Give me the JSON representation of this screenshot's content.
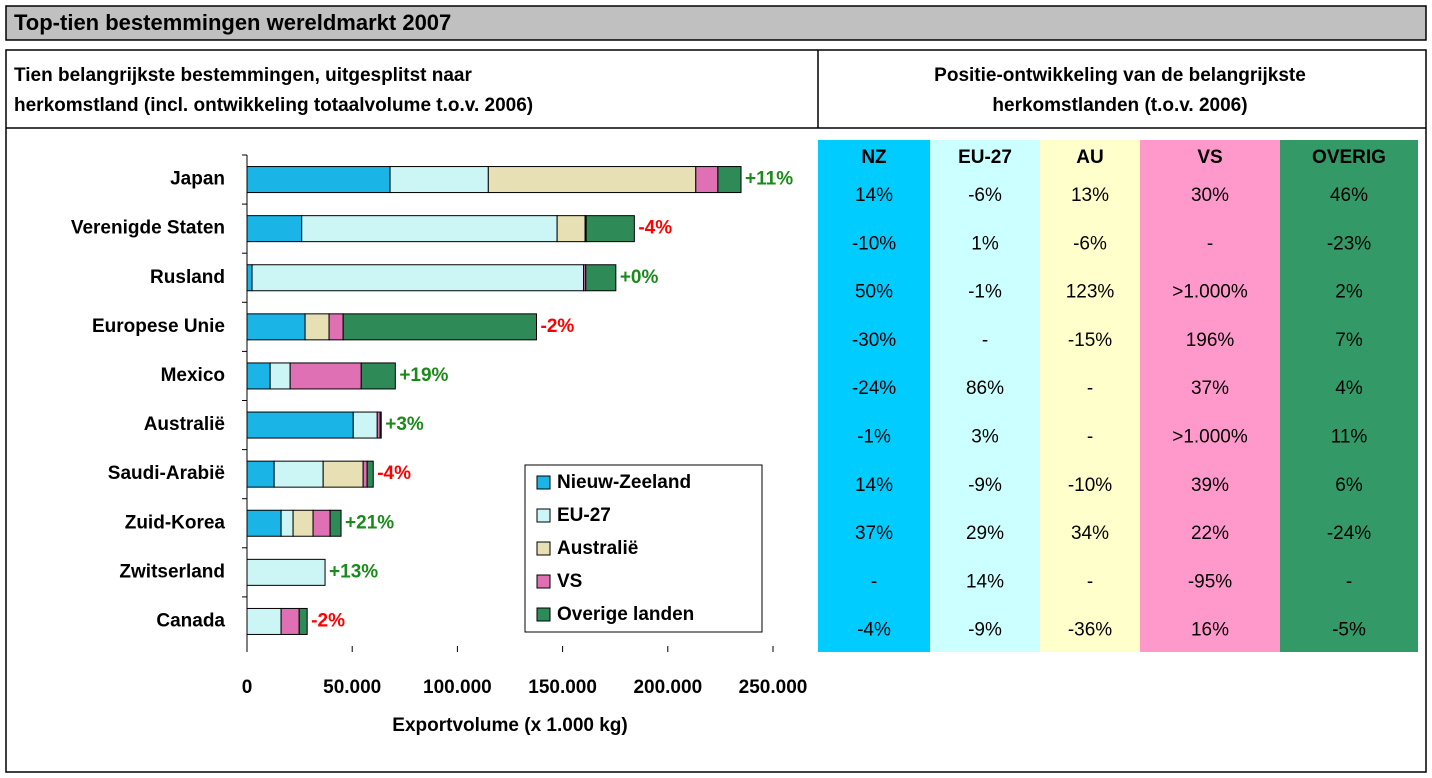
{
  "header": {
    "title": "Top-tien bestemmingen wereldmarkt 2007"
  },
  "left_heading": [
    "Tien belangrijkste bestemmingen, uitgesplitst naar",
    "herkomstland (incl. ontwikkeling totaalvolume t.o.v. 2006)"
  ],
  "right_heading": [
    "Positie-ontwikkeling van de belangrijkste",
    "herkomstlanden (t.o.v. 2006)"
  ],
  "chart_data": {
    "type": "stacked-bar-horizontal",
    "categories": [
      "Japan",
      "Verenigde Staten",
      "Rusland",
      "Europese Unie",
      "Mexico",
      "Australië",
      "Saudi-Arabië",
      "Zuid-Korea",
      "Zwitserland",
      "Canada"
    ],
    "series": [
      {
        "name": "Nieuw-Zeeland",
        "color": "#1ab4e6",
        "values": [
          68000,
          26000,
          2400,
          27600,
          11000,
          50500,
          12900,
          16200,
          0,
          0
        ]
      },
      {
        "name": "EU-27",
        "color": "#ccf5f5",
        "values": [
          46700,
          121400,
          157600,
          0,
          9500,
          11400,
          23300,
          5700,
          37100,
          16200
        ]
      },
      {
        "name": "Australië",
        "color": "#e6e0b4",
        "values": [
          98600,
          13300,
          0,
          11400,
          0,
          0,
          19000,
          9500,
          0,
          0
        ]
      },
      {
        "name": "VS",
        "color": "#e070b4",
        "values": [
          10500,
          500,
          1000,
          6700,
          33800,
          1400,
          1900,
          8100,
          0,
          8600
        ]
      },
      {
        "name": "Overige landen",
        "color": "#2e8b57",
        "values": [
          11000,
          22900,
          14300,
          91900,
          16200,
          500,
          2900,
          5200,
          0,
          3800
        ]
      }
    ],
    "change_labels": [
      "+11%",
      "-4%",
      "+0%",
      "-2%",
      "+19%",
      "+3%",
      "-4%",
      "+21%",
      "+13%",
      "-2%"
    ],
    "change_colors": [
      "#1a8a1a",
      "#ff0000",
      "#1a8a1a",
      "#ff0000",
      "#1a8a1a",
      "#1a8a1a",
      "#ff0000",
      "#1a8a1a",
      "#1a8a1a",
      "#ff0000"
    ],
    "xlim": [
      0,
      250000
    ],
    "xticks": [
      0,
      {
        "value": 50000,
        "label": "50.000"
      },
      {
        "value": 100000,
        "label": "100.000"
      },
      {
        "value": 150000,
        "label": "150.000"
      },
      {
        "value": 200000,
        "label": "200.000"
      },
      {
        "value": 250000,
        "label": "250.000"
      }
    ],
    "xlabel": "Exportvolume (x 1.000 kg)",
    "legend": "bottom-right"
  },
  "table": {
    "columns": [
      "NZ",
      "EU-27",
      "AU",
      "VS",
      "OVERIG"
    ],
    "column_colors": [
      "#00ccff",
      "#ccffff",
      "#ffffcc",
      "#ff99cc",
      "#339966"
    ],
    "rows": [
      [
        "14%",
        "-6%",
        "13%",
        "30%",
        "46%"
      ],
      [
        "-10%",
        "1%",
        "-6%",
        "-",
        "-23%"
      ],
      [
        "50%",
        "-1%",
        "123%",
        ">1.000%",
        "2%"
      ],
      [
        "-30%",
        "-",
        "-15%",
        "196%",
        "7%"
      ],
      [
        "-24%",
        "86%",
        "-",
        "37%",
        "4%"
      ],
      [
        "-1%",
        "3%",
        "-",
        ">1.000%",
        "11%"
      ],
      [
        "14%",
        "-9%",
        "-10%",
        "39%",
        "6%"
      ],
      [
        "37%",
        "29%",
        "34%",
        "22%",
        "-24%"
      ],
      [
        "-",
        "14%",
        "-",
        "-95%",
        "-"
      ],
      [
        "-4%",
        "-9%",
        "-36%",
        "16%",
        "-5%"
      ]
    ]
  }
}
